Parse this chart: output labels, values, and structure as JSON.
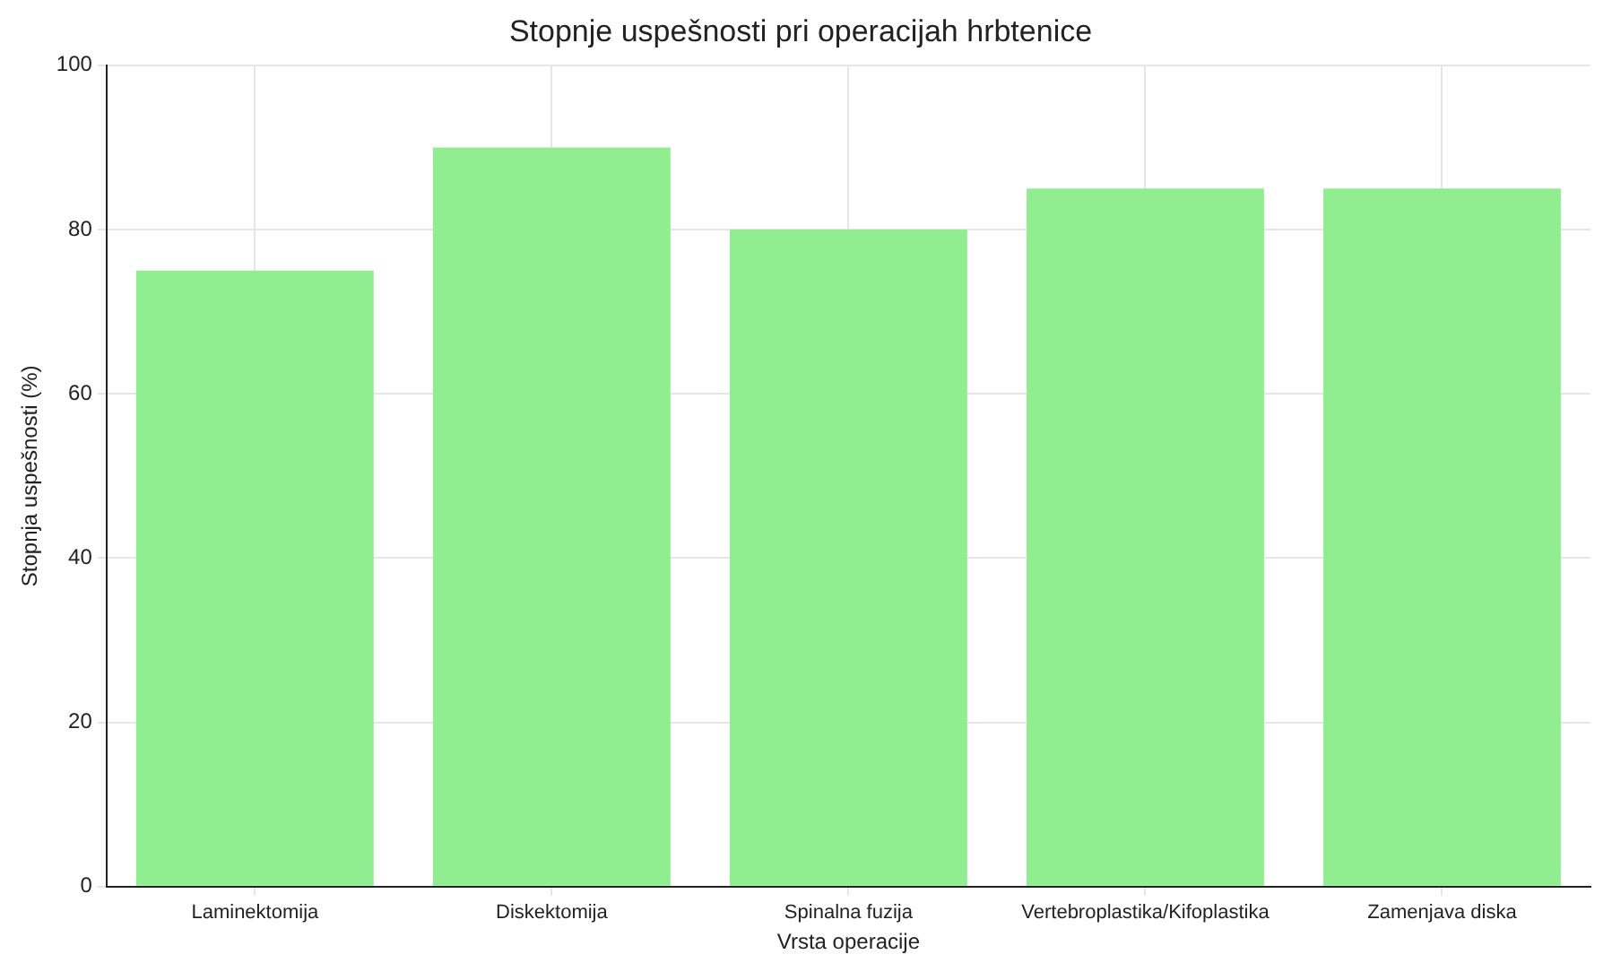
{
  "chart_data": {
    "type": "bar",
    "title": "Stopnje uspešnosti pri operacijah hrbtenice",
    "xlabel": "Vrsta operacije",
    "ylabel": "Stopnja uspešnosti (%)",
    "categories": [
      "Laminektomija",
      "Diskektomija",
      "Spinalna fuzija",
      "Vertebroplastika/Kifoplastika",
      "Zamenjava diska"
    ],
    "values": [
      75,
      90,
      80,
      85,
      85
    ],
    "color": "#90ee90",
    "ylim": [
      0,
      100
    ],
    "yticks": [
      0,
      20,
      40,
      60,
      80,
      100
    ],
    "grid": true
  }
}
